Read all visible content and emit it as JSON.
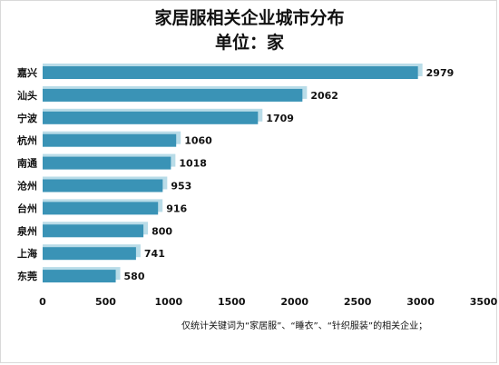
{
  "chart_data": {
    "type": "bar",
    "orientation": "horizontal",
    "title": "家居服相关企业城市分布",
    "subtitle": "单位：家",
    "categories": [
      "嘉兴",
      "汕头",
      "宁波",
      "杭州",
      "南通",
      "沧州",
      "台州",
      "泉州",
      "上海",
      "东莞"
    ],
    "values": [
      2979,
      2062,
      1709,
      1060,
      1018,
      953,
      916,
      800,
      741,
      580
    ],
    "value_labels": [
      "2979",
      "2062",
      "1709",
      "1060",
      "1018",
      "953",
      "916",
      "800",
      "741",
      "580"
    ],
    "xlim": [
      0,
      3500
    ],
    "xticks": [
      "0",
      "500",
      "1000",
      "1500",
      "2000",
      "2500",
      "3000",
      "3500"
    ],
    "grid": false,
    "bar_color": "#3a93b6",
    "shadow_color": "#b9dce8",
    "footnote": "仅统计关键词为“家居服”、“睡衣”、“针织服装”的相关企业；"
  }
}
